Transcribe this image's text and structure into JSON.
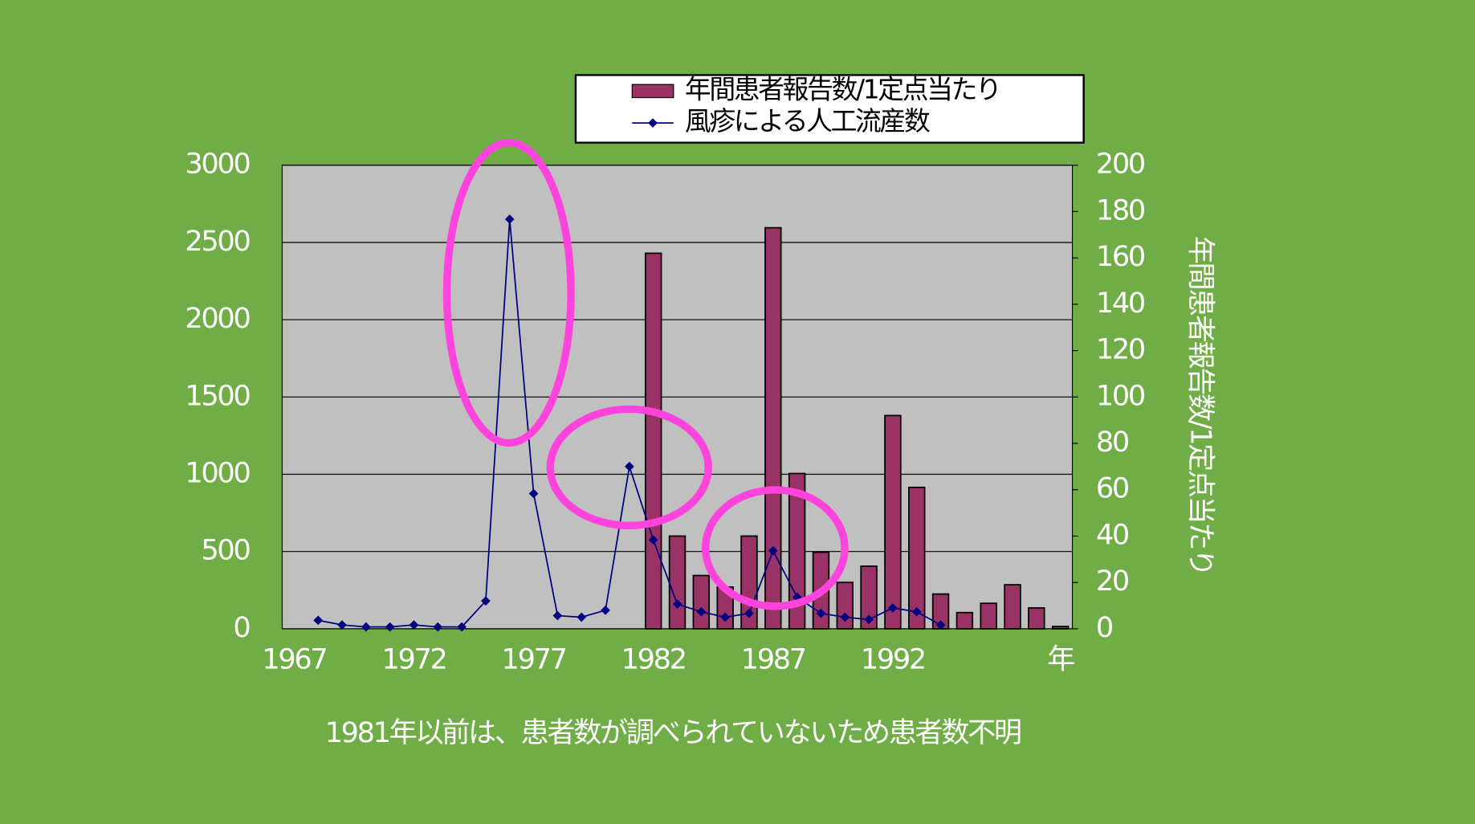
{
  "chart_data": {
    "type": "bar",
    "categories": [
      "1967",
      null,
      null,
      null,
      null,
      "1972",
      null,
      null,
      null,
      null,
      "1977",
      null,
      null,
      null,
      null,
      "1982",
      null,
      null,
      null,
      null,
      "1987",
      null,
      null,
      null,
      null,
      "1992",
      null,
      null,
      null,
      null,
      null,
      null,
      "年"
    ],
    "series": [
      {
        "name": "年間患者報告数/1定点当たり",
        "type": "bar",
        "axis": "y2",
        "color": "#993366",
        "values": [
          null,
          null,
          null,
          null,
          null,
          null,
          null,
          null,
          null,
          null,
          null,
          null,
          null,
          null,
          null,
          162,
          40,
          23,
          18,
          40,
          173,
          67,
          33,
          20,
          27,
          92,
          61,
          15,
          7,
          11,
          19,
          9,
          1
        ]
      },
      {
        "name": "風疹による人工流産数",
        "type": "line",
        "color": "#000080",
        "values": [
          null,
          55,
          25,
          12,
          12,
          25,
          12,
          12,
          180,
          2650,
          875,
          85,
          75,
          120,
          1050,
          575,
          160,
          110,
          75,
          100,
          505,
          205,
          100,
          75,
          60,
          135,
          110,
          25,
          null,
          null,
          null,
          null,
          null
        ]
      }
    ],
    "ylim": [
      0,
      3000
    ],
    "yticks": [
      0,
      500,
      1000,
      1500,
      2000,
      2500,
      3000
    ],
    "y2lim": [
      0,
      200
    ],
    "y2ticks": [
      0,
      20,
      40,
      60,
      80,
      100,
      120,
      140,
      160,
      180,
      200
    ],
    "y2label": "年間患者報告数/1定点当たり",
    "grid": true,
    "legend": "top",
    "footnote": "1981年以前は、患者数が調べられていないため患者数不明"
  }
}
